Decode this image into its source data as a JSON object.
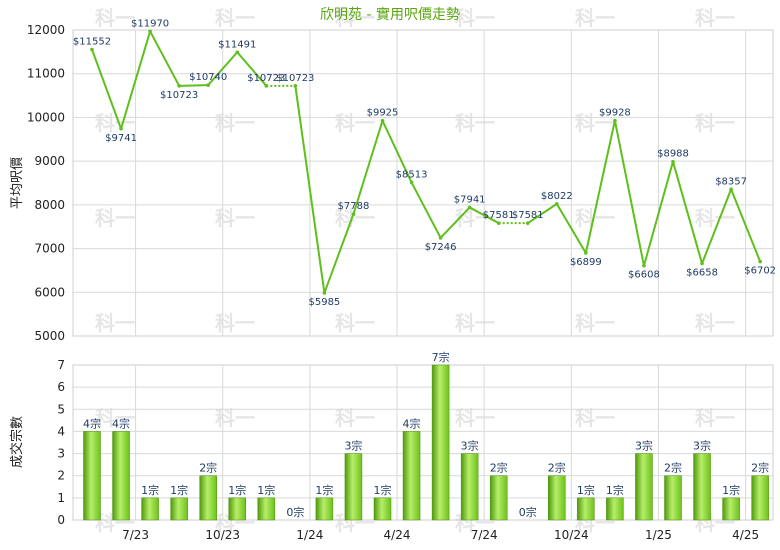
{
  "chart_data": [
    {
      "type": "line",
      "title": "欣明苑 - 實用呎價走勢",
      "ylabel": "平均呎價",
      "ylim": [
        5000,
        12000
      ],
      "yticks": [
        5000,
        6000,
        7000,
        8000,
        9000,
        10000,
        11000,
        12000
      ],
      "line_color": "#5fbf1c",
      "labels": [
        "$11552",
        "$9741",
        "$11970",
        "$10723",
        "$10740",
        "$11491",
        "$10723",
        "$10723",
        "$5985",
        "$7788",
        "$9925",
        "$8513",
        "$7246",
        "$7941",
        "$7581",
        "$7581",
        "$8022",
        "$6899",
        "$9928",
        "$6608",
        "$8988",
        "$6658",
        "$8357",
        "$6702"
      ],
      "values": [
        11552,
        9741,
        11970,
        10723,
        10740,
        11491,
        10723,
        10723,
        5985,
        7788,
        9925,
        8513,
        7246,
        7941,
        7581,
        7581,
        8022,
        6899,
        9928,
        6608,
        8988,
        6658,
        8357,
        6702
      ],
      "interpolated_index_pairs": [
        [
          6,
          7
        ],
        [
          14,
          15
        ]
      ]
    },
    {
      "type": "bar",
      "ylabel": "成交宗數",
      "ylim": [
        0,
        7
      ],
      "yticks": [
        0,
        1,
        2,
        3,
        4,
        5,
        6,
        7
      ],
      "bar_color": "#6cc21a",
      "categories": [
        "7/23",
        "10/23",
        "1/24",
        "4/24",
        "7/24",
        "10/24",
        "1/25",
        "4/25"
      ],
      "values": [
        4,
        4,
        1,
        1,
        2,
        1,
        1,
        0,
        1,
        3,
        1,
        4,
        7,
        3,
        2,
        0,
        2,
        1,
        1,
        3,
        2,
        3,
        1,
        2
      ],
      "labels": [
        "4宗",
        "4宗",
        "1宗",
        "1宗",
        "2宗",
        "1宗",
        "1宗",
        "0宗",
        "1宗",
        "3宗",
        "1宗",
        "4宗",
        "7宗",
        "3宗",
        "2宗",
        "0宗",
        "2宗",
        "1宗",
        "1宗",
        "3宗",
        "2宗",
        "3宗",
        "1宗",
        "2宗"
      ]
    }
  ],
  "watermark": "科一"
}
